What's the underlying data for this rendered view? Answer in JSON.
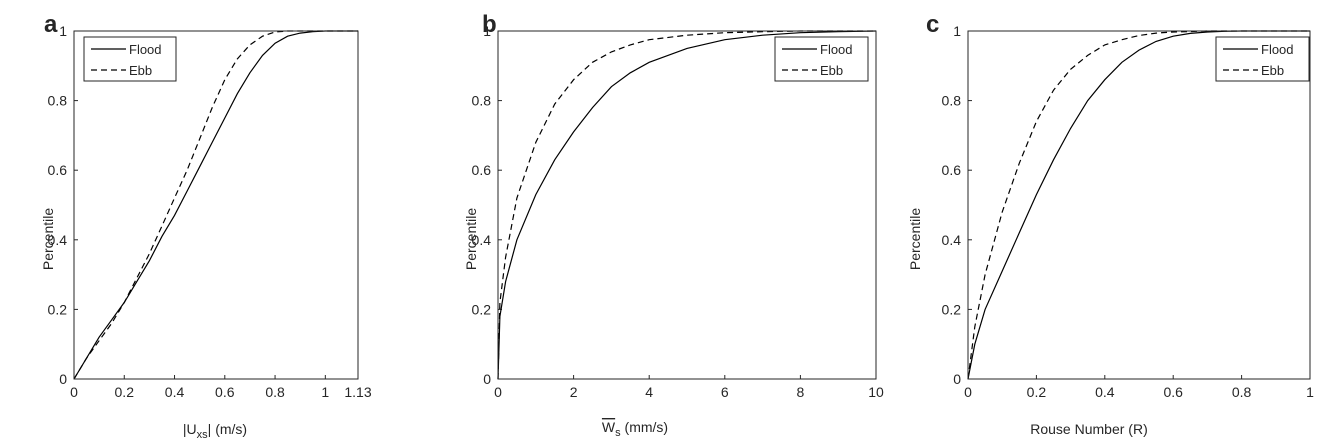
{
  "chart_data": [
    {
      "type": "line",
      "panel_label": "a",
      "xlabel": "",
      "ylabel": "Percentile",
      "xlim": [
        0,
        1.13
      ],
      "ylim": [
        0,
        1
      ],
      "xticks": [
        0,
        0.2,
        0.4,
        0.6,
        0.8,
        1,
        1.13
      ],
      "xtick_labels": [
        "0",
        "0.2",
        "0.4",
        "0.6",
        "0.8",
        "1",
        "1.13"
      ],
      "yticks": [
        0,
        0.2,
        0.4,
        0.6,
        0.8,
        1
      ],
      "ytick_labels": [
        "0",
        "0.2",
        "0.4",
        "0.6",
        "0.8",
        "1"
      ],
      "legend_position": "top-left",
      "series": [
        {
          "name": "Flood",
          "style": "solid",
          "x": [
            0,
            0.05,
            0.1,
            0.15,
            0.2,
            0.25,
            0.3,
            0.35,
            0.4,
            0.45,
            0.5,
            0.55,
            0.6,
            0.65,
            0.7,
            0.75,
            0.8,
            0.85,
            0.9,
            0.95,
            1.0,
            1.05,
            1.13
          ],
          "y": [
            0,
            0.06,
            0.12,
            0.17,
            0.22,
            0.28,
            0.34,
            0.41,
            0.47,
            0.54,
            0.61,
            0.68,
            0.75,
            0.82,
            0.88,
            0.93,
            0.965,
            0.985,
            0.994,
            0.998,
            1.0,
            1.0,
            1.0
          ]
        },
        {
          "name": "Ebb",
          "style": "dashed",
          "x": [
            0,
            0.05,
            0.1,
            0.15,
            0.2,
            0.25,
            0.3,
            0.35,
            0.4,
            0.45,
            0.5,
            0.55,
            0.6,
            0.65,
            0.7,
            0.75,
            0.8,
            0.85,
            0.9,
            1.0,
            1.13
          ],
          "y": [
            0,
            0.06,
            0.11,
            0.16,
            0.22,
            0.29,
            0.36,
            0.44,
            0.52,
            0.6,
            0.69,
            0.78,
            0.86,
            0.92,
            0.96,
            0.985,
            0.997,
            1.0,
            1.0,
            1.0,
            1.0
          ]
        }
      ]
    },
    {
      "type": "line",
      "panel_label": "b",
      "xlabel": "",
      "ylabel": "Percentile",
      "xlim": [
        0,
        10
      ],
      "ylim": [
        0,
        1
      ],
      "xticks": [
        0,
        2,
        4,
        6,
        8,
        10
      ],
      "xtick_labels": [
        "0",
        "2",
        "4",
        "6",
        "8",
        "10"
      ],
      "yticks": [
        0,
        0.2,
        0.4,
        0.6,
        0.8,
        1
      ],
      "ytick_labels": [
        "0",
        "0.2",
        "0.4",
        "0.6",
        "0.8",
        "1"
      ],
      "legend_position": "top-right",
      "series": [
        {
          "name": "Flood",
          "style": "solid",
          "x": [
            0,
            0.05,
            0.2,
            0.5,
            1,
            1.5,
            2,
            2.5,
            3,
            3.5,
            4,
            5,
            6,
            7,
            8,
            9,
            10
          ],
          "y": [
            0,
            0.18,
            0.28,
            0.4,
            0.53,
            0.63,
            0.71,
            0.78,
            0.84,
            0.88,
            0.91,
            0.95,
            0.975,
            0.988,
            0.995,
            0.998,
            1.0
          ]
        },
        {
          "name": "Ebb",
          "style": "dashed",
          "x": [
            0,
            0.05,
            0.2,
            0.5,
            1,
            1.5,
            2,
            2.5,
            3,
            3.5,
            4,
            5,
            6,
            7,
            8,
            10
          ],
          "y": [
            0,
            0.22,
            0.35,
            0.52,
            0.68,
            0.79,
            0.86,
            0.91,
            0.94,
            0.96,
            0.975,
            0.988,
            0.995,
            0.998,
            1.0,
            1.0
          ]
        }
      ]
    },
    {
      "type": "line",
      "panel_label": "c",
      "xlabel": "Rouse Number (R)",
      "ylabel": "Percentile",
      "xlim": [
        0,
        1
      ],
      "ylim": [
        0,
        1
      ],
      "xticks": [
        0,
        0.2,
        0.4,
        0.6,
        0.8,
        1
      ],
      "xtick_labels": [
        "0",
        "0.2",
        "0.4",
        "0.6",
        "0.8",
        "1"
      ],
      "yticks": [
        0,
        0.2,
        0.4,
        0.6,
        0.8,
        1
      ],
      "ytick_labels": [
        "0",
        "0.2",
        "0.4",
        "0.6",
        "0.8",
        "1"
      ],
      "legend_position": "top-right",
      "series": [
        {
          "name": "Flood",
          "style": "solid",
          "x": [
            0,
            0.02,
            0.05,
            0.1,
            0.15,
            0.2,
            0.25,
            0.3,
            0.35,
            0.4,
            0.45,
            0.5,
            0.55,
            0.6,
            0.65,
            0.7,
            0.75,
            0.8,
            1.0
          ],
          "y": [
            0,
            0.1,
            0.2,
            0.31,
            0.42,
            0.53,
            0.63,
            0.72,
            0.8,
            0.86,
            0.91,
            0.945,
            0.97,
            0.985,
            0.993,
            0.997,
            0.999,
            1.0,
            1.0
          ]
        },
        {
          "name": "Ebb",
          "style": "dashed",
          "x": [
            0,
            0.02,
            0.05,
            0.1,
            0.15,
            0.2,
            0.25,
            0.3,
            0.35,
            0.4,
            0.45,
            0.5,
            0.55,
            0.6,
            0.7,
            0.8,
            1.0
          ],
          "y": [
            0,
            0.15,
            0.3,
            0.48,
            0.62,
            0.74,
            0.83,
            0.89,
            0.93,
            0.96,
            0.975,
            0.987,
            0.994,
            0.997,
            1.0,
            1.0,
            1.0
          ]
        }
      ]
    }
  ],
  "xlabel_parts": {
    "a": {
      "pre": "|U",
      "sub": "xs",
      "post": "| (m/s)"
    },
    "b": {
      "over": "W",
      "sub": "s",
      "post": " (mm/s)"
    }
  }
}
